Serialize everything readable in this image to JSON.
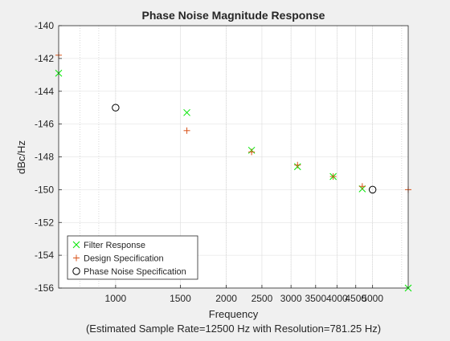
{
  "chart_data": {
    "type": "scatter",
    "title": "Phase Noise Magnitude Response",
    "xlabel": "Frequency",
    "xlabel_note": "(Estimated Sample Rate=12500 Hz with Resolution=781.25 Hz)",
    "ylabel": "dBc/Hz",
    "xscale": "log",
    "xlim": [
      700,
      6250
    ],
    "ylim": [
      -156,
      -140
    ],
    "grid": "log-minor-x",
    "legend_position": "bottom-left",
    "xticks": [
      1000,
      1500,
      2000,
      2500,
      3000,
      3500,
      4000,
      4500,
      5000
    ],
    "xtick_labels": [
      "1000",
      "1500",
      "2000",
      "2500",
      "3000",
      "3500",
      "4000",
      "4500",
      "5000"
    ],
    "yticks": [
      -140,
      -142,
      -144,
      -146,
      -148,
      -150,
      -152,
      -154,
      -156
    ],
    "ytick_labels": [
      "-140",
      "-142",
      "-144",
      "-146",
      "-148",
      "-150",
      "-152",
      "-154",
      "-156"
    ],
    "series": [
      {
        "name": "Filter Response",
        "marker": "x",
        "color": "#00e600",
        "x": [
          700,
          1562.5,
          2343.75,
          3125,
          3906.25,
          4687.5,
          6250
        ],
        "y": [
          -142.9,
          -145.3,
          -147.6,
          -148.6,
          -149.2,
          -149.95,
          -156
        ]
      },
      {
        "name": "Design Specification",
        "marker": "+",
        "color": "#d95319",
        "x": [
          700,
          1562.5,
          2343.75,
          3125,
          3906.25,
          4687.5,
          6250
        ],
        "y": [
          -141.8,
          -146.4,
          -147.7,
          -148.5,
          -149.2,
          -149.8,
          -150
        ]
      },
      {
        "name": "Phase Noise Specification",
        "marker": "o",
        "color": "#000000",
        "x": [
          1000,
          5000
        ],
        "y": [
          -145,
          -150
        ]
      }
    ]
  }
}
